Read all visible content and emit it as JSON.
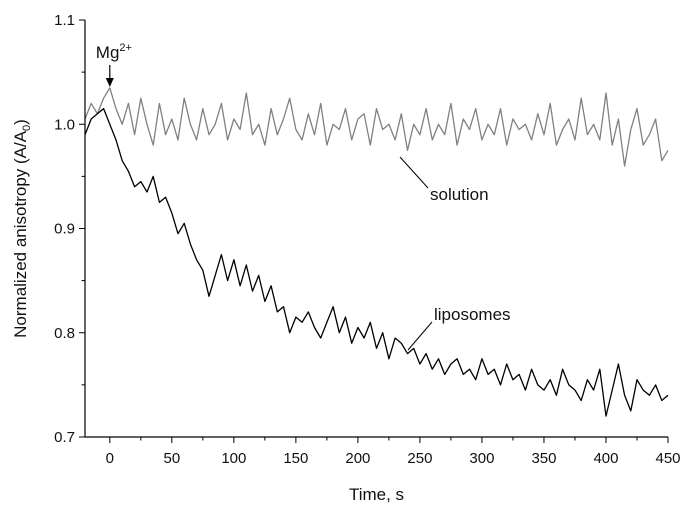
{
  "chart_data": {
    "type": "line",
    "xlabel": "Time, s",
    "ylabel": "Normalized anisotropy (A/A",
    "ylabel_sub": "0",
    "ylabel_close": ")",
    "xlim": [
      -20,
      450
    ],
    "ylim": [
      0.7,
      1.1
    ],
    "xticks": [
      0,
      50,
      100,
      150,
      200,
      250,
      300,
      350,
      400,
      450
    ],
    "yticks": [
      0.7,
      0.8,
      0.9,
      1.0,
      1.1
    ],
    "xtick_labels": [
      "0",
      "50",
      "100",
      "150",
      "200",
      "250",
      "300",
      "350",
      "400",
      "450"
    ],
    "ytick_labels": [
      "0.7",
      "0.8",
      "0.9",
      "1.0",
      "1.1"
    ],
    "grid": false,
    "annotations": {
      "mg_base": "Mg",
      "mg_sup": "2+",
      "mg_x": 0,
      "solution_label": "solution",
      "liposomes_label": "liposomes"
    },
    "series": [
      {
        "name": "solution",
        "color": "#808080",
        "x": [
          -20,
          -15,
          -10,
          -5,
          0,
          5,
          10,
          15,
          20,
          25,
          30,
          35,
          40,
          45,
          50,
          55,
          60,
          65,
          70,
          75,
          80,
          85,
          90,
          95,
          100,
          105,
          110,
          115,
          120,
          125,
          130,
          135,
          140,
          145,
          150,
          155,
          160,
          165,
          170,
          175,
          180,
          185,
          190,
          195,
          200,
          205,
          210,
          215,
          220,
          225,
          230,
          235,
          240,
          245,
          250,
          255,
          260,
          265,
          270,
          275,
          280,
          285,
          290,
          295,
          300,
          305,
          310,
          315,
          320,
          325,
          330,
          335,
          340,
          345,
          350,
          355,
          360,
          365,
          370,
          375,
          380,
          385,
          390,
          395,
          400,
          405,
          410,
          415,
          420,
          425,
          430,
          435,
          440,
          445,
          450
        ],
        "y": [
          1.005,
          1.02,
          1.01,
          1.025,
          1.035,
          1.015,
          1.0,
          1.02,
          0.99,
          1.025,
          1.0,
          0.98,
          1.02,
          0.99,
          1.005,
          0.985,
          1.025,
          1.0,
          0.985,
          1.015,
          0.99,
          1.0,
          1.02,
          0.985,
          1.005,
          0.995,
          1.03,
          0.99,
          1.0,
          0.98,
          1.015,
          0.99,
          1.005,
          1.025,
          0.995,
          0.985,
          1.01,
          0.99,
          1.02,
          0.98,
          1.0,
          0.995,
          1.015,
          0.985,
          1.005,
          1.01,
          0.98,
          1.015,
          0.995,
          1.0,
          0.985,
          1.01,
          0.975,
          1.0,
          0.99,
          1.015,
          0.985,
          1.0,
          0.99,
          1.02,
          0.98,
          1.005,
          0.995,
          1.015,
          0.985,
          1.0,
          0.99,
          1.015,
          0.98,
          1.005,
          0.995,
          1.0,
          0.985,
          1.01,
          0.99,
          1.02,
          0.98,
          0.995,
          1.005,
          0.985,
          1.025,
          0.99,
          1.0,
          0.985,
          1.03,
          0.98,
          1.005,
          0.96,
          0.995,
          1.015,
          0.98,
          0.99,
          1.005,
          0.965,
          0.975
        ]
      },
      {
        "name": "liposomes",
        "color": "#000000",
        "x": [
          -20,
          -15,
          -10,
          -5,
          0,
          5,
          10,
          15,
          20,
          25,
          30,
          35,
          40,
          45,
          50,
          55,
          60,
          65,
          70,
          75,
          80,
          85,
          90,
          95,
          100,
          105,
          110,
          115,
          120,
          125,
          130,
          135,
          140,
          145,
          150,
          155,
          160,
          165,
          170,
          175,
          180,
          185,
          190,
          195,
          200,
          205,
          210,
          215,
          220,
          225,
          230,
          235,
          240,
          245,
          250,
          255,
          260,
          265,
          270,
          275,
          280,
          285,
          290,
          295,
          300,
          305,
          310,
          315,
          320,
          325,
          330,
          335,
          340,
          345,
          350,
          355,
          360,
          365,
          370,
          375,
          380,
          385,
          390,
          395,
          400,
          405,
          410,
          415,
          420,
          425,
          430,
          435,
          440,
          445,
          450
        ],
        "y": [
          0.99,
          1.005,
          1.01,
          1.015,
          1.0,
          0.985,
          0.965,
          0.955,
          0.94,
          0.945,
          0.935,
          0.95,
          0.925,
          0.93,
          0.915,
          0.895,
          0.905,
          0.885,
          0.87,
          0.86,
          0.835,
          0.855,
          0.875,
          0.85,
          0.87,
          0.845,
          0.865,
          0.84,
          0.855,
          0.83,
          0.845,
          0.82,
          0.825,
          0.8,
          0.815,
          0.81,
          0.82,
          0.805,
          0.795,
          0.81,
          0.825,
          0.8,
          0.815,
          0.79,
          0.805,
          0.795,
          0.81,
          0.785,
          0.8,
          0.775,
          0.795,
          0.79,
          0.78,
          0.785,
          0.77,
          0.78,
          0.765,
          0.775,
          0.76,
          0.77,
          0.775,
          0.76,
          0.765,
          0.755,
          0.775,
          0.76,
          0.765,
          0.75,
          0.77,
          0.755,
          0.76,
          0.745,
          0.765,
          0.75,
          0.745,
          0.755,
          0.74,
          0.765,
          0.75,
          0.745,
          0.735,
          0.755,
          0.745,
          0.765,
          0.72,
          0.745,
          0.77,
          0.74,
          0.725,
          0.755,
          0.745,
          0.74,
          0.75,
          0.735,
          0.74
        ]
      }
    ]
  }
}
